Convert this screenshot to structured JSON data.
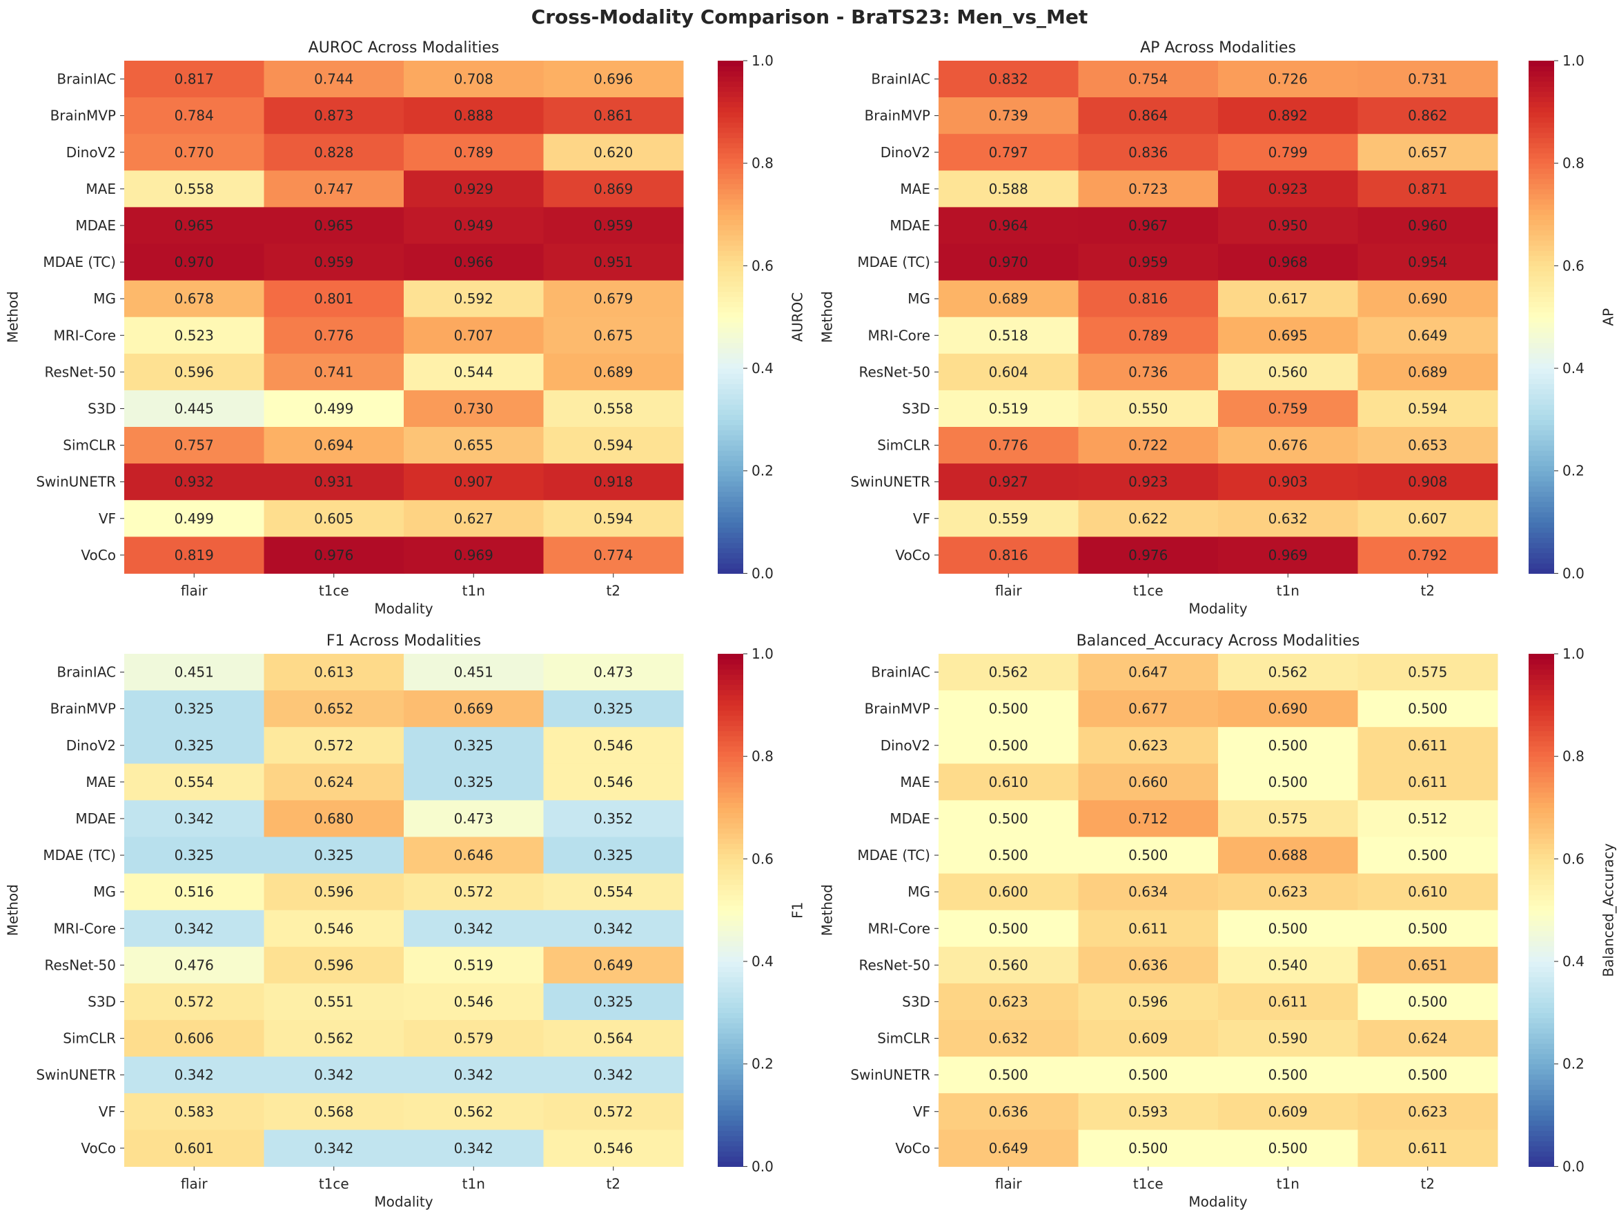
{
  "figure": {
    "title": "Cross-Modality Comparison - BraTS23: Men_vs_Met"
  },
  "chart_data": [
    {
      "type": "heatmap",
      "title": "AUROC Across Modalities",
      "xlabel": "Modality",
      "ylabel": "Method",
      "colorbar_label": "AUROC",
      "colormap": "RdYlBu_r",
      "vmin": 0.0,
      "vmax": 1.0,
      "colorbar_ticks": [
        "0.0",
        "0.2",
        "0.4",
        "0.6",
        "0.8",
        "1.0"
      ],
      "columns": [
        "flair",
        "t1ce",
        "t1n",
        "t2"
      ],
      "rows": [
        "BrainIAC",
        "BrainMVP",
        "DinoV2",
        "MAE",
        "MDAE",
        "MDAE (TC)",
        "MG",
        "MRI-Core",
        "ResNet-50",
        "S3D",
        "SimCLR",
        "SwinUNETR",
        "VF",
        "VoCo"
      ],
      "values": [
        [
          0.817,
          0.744,
          0.708,
          0.696
        ],
        [
          0.784,
          0.873,
          0.888,
          0.861
        ],
        [
          0.77,
          0.828,
          0.789,
          0.62
        ],
        [
          0.558,
          0.747,
          0.929,
          0.869
        ],
        [
          0.965,
          0.965,
          0.949,
          0.959
        ],
        [
          0.97,
          0.959,
          0.966,
          0.951
        ],
        [
          0.678,
          0.801,
          0.592,
          0.679
        ],
        [
          0.523,
          0.776,
          0.707,
          0.675
        ],
        [
          0.596,
          0.741,
          0.544,
          0.689
        ],
        [
          0.445,
          0.499,
          0.73,
          0.558
        ],
        [
          0.757,
          0.694,
          0.655,
          0.594
        ],
        [
          0.932,
          0.931,
          0.907,
          0.918
        ],
        [
          0.499,
          0.605,
          0.627,
          0.594
        ],
        [
          0.819,
          0.976,
          0.969,
          0.774
        ]
      ]
    },
    {
      "type": "heatmap",
      "title": "AP Across Modalities",
      "xlabel": "Modality",
      "ylabel": "Method",
      "colorbar_label": "AP",
      "colormap": "RdYlBu_r",
      "vmin": 0.0,
      "vmax": 1.0,
      "colorbar_ticks": [
        "0.0",
        "0.2",
        "0.4",
        "0.6",
        "0.8",
        "1.0"
      ],
      "columns": [
        "flair",
        "t1ce",
        "t1n",
        "t2"
      ],
      "rows": [
        "BrainIAC",
        "BrainMVP",
        "DinoV2",
        "MAE",
        "MDAE",
        "MDAE (TC)",
        "MG",
        "MRI-Core",
        "ResNet-50",
        "S3D",
        "SimCLR",
        "SwinUNETR",
        "VF",
        "VoCo"
      ],
      "values": [
        [
          0.832,
          0.754,
          0.726,
          0.731
        ],
        [
          0.739,
          0.864,
          0.892,
          0.862
        ],
        [
          0.797,
          0.836,
          0.799,
          0.657
        ],
        [
          0.588,
          0.723,
          0.923,
          0.871
        ],
        [
          0.964,
          0.967,
          0.95,
          0.96
        ],
        [
          0.97,
          0.959,
          0.968,
          0.954
        ],
        [
          0.689,
          0.816,
          0.617,
          0.69
        ],
        [
          0.518,
          0.789,
          0.695,
          0.649
        ],
        [
          0.604,
          0.736,
          0.56,
          0.689
        ],
        [
          0.519,
          0.55,
          0.759,
          0.594
        ],
        [
          0.776,
          0.722,
          0.676,
          0.653
        ],
        [
          0.927,
          0.923,
          0.903,
          0.908
        ],
        [
          0.559,
          0.622,
          0.632,
          0.607
        ],
        [
          0.816,
          0.976,
          0.969,
          0.792
        ]
      ]
    },
    {
      "type": "heatmap",
      "title": "F1 Across Modalities",
      "xlabel": "Modality",
      "ylabel": "Method",
      "colorbar_label": "F1",
      "colormap": "RdYlBu_r",
      "vmin": 0.0,
      "vmax": 1.0,
      "colorbar_ticks": [
        "0.0",
        "0.2",
        "0.4",
        "0.6",
        "0.8",
        "1.0"
      ],
      "columns": [
        "flair",
        "t1ce",
        "t1n",
        "t2"
      ],
      "rows": [
        "BrainIAC",
        "BrainMVP",
        "DinoV2",
        "MAE",
        "MDAE",
        "MDAE (TC)",
        "MG",
        "MRI-Core",
        "ResNet-50",
        "S3D",
        "SimCLR",
        "SwinUNETR",
        "VF",
        "VoCo"
      ],
      "values": [
        [
          0.451,
          0.613,
          0.451,
          0.473
        ],
        [
          0.325,
          0.652,
          0.669,
          0.325
        ],
        [
          0.325,
          0.572,
          0.325,
          0.546
        ],
        [
          0.554,
          0.624,
          0.325,
          0.546
        ],
        [
          0.342,
          0.68,
          0.473,
          0.352
        ],
        [
          0.325,
          0.325,
          0.646,
          0.325
        ],
        [
          0.516,
          0.596,
          0.572,
          0.554
        ],
        [
          0.342,
          0.546,
          0.342,
          0.342
        ],
        [
          0.476,
          0.596,
          0.519,
          0.649
        ],
        [
          0.572,
          0.551,
          0.546,
          0.325
        ],
        [
          0.606,
          0.562,
          0.579,
          0.564
        ],
        [
          0.342,
          0.342,
          0.342,
          0.342
        ],
        [
          0.583,
          0.568,
          0.562,
          0.572
        ],
        [
          0.601,
          0.342,
          0.342,
          0.546
        ]
      ]
    },
    {
      "type": "heatmap",
      "title": "Balanced_Accuracy Across Modalities",
      "xlabel": "Modality",
      "ylabel": "Method",
      "colorbar_label": "Balanced_Accuracy",
      "colormap": "RdYlBu_r",
      "vmin": 0.0,
      "vmax": 1.0,
      "colorbar_ticks": [
        "0.0",
        "0.2",
        "0.4",
        "0.6",
        "0.8",
        "1.0"
      ],
      "columns": [
        "flair",
        "t1ce",
        "t1n",
        "t2"
      ],
      "rows": [
        "BrainIAC",
        "BrainMVP",
        "DinoV2",
        "MAE",
        "MDAE",
        "MDAE (TC)",
        "MG",
        "MRI-Core",
        "ResNet-50",
        "S3D",
        "SimCLR",
        "SwinUNETR",
        "VF",
        "VoCo"
      ],
      "values": [
        [
          0.562,
          0.647,
          0.562,
          0.575
        ],
        [
          0.5,
          0.677,
          0.69,
          0.5
        ],
        [
          0.5,
          0.623,
          0.5,
          0.611
        ],
        [
          0.61,
          0.66,
          0.5,
          0.611
        ],
        [
          0.5,
          0.712,
          0.575,
          0.512
        ],
        [
          0.5,
          0.5,
          0.688,
          0.5
        ],
        [
          0.6,
          0.634,
          0.623,
          0.61
        ],
        [
          0.5,
          0.611,
          0.5,
          0.5
        ],
        [
          0.56,
          0.636,
          0.54,
          0.651
        ],
        [
          0.623,
          0.596,
          0.611,
          0.5
        ],
        [
          0.632,
          0.609,
          0.59,
          0.624
        ],
        [
          0.5,
          0.5,
          0.5,
          0.5
        ],
        [
          0.636,
          0.593,
          0.609,
          0.623
        ],
        [
          0.649,
          0.5,
          0.5,
          0.611
        ]
      ]
    }
  ]
}
